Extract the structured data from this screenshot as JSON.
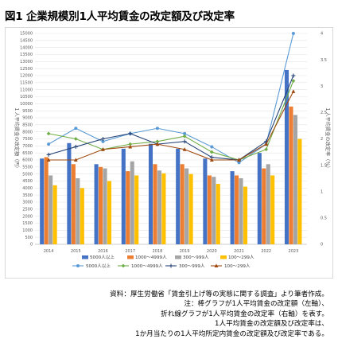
{
  "figure_title": "図1 企業規模別1人平均賃金の改定額及び改定率",
  "chart_data": {
    "type": "bar+line",
    "categories": [
      "2014",
      "2015",
      "2016",
      "2017",
      "2018",
      "2019",
      "2020",
      "2021",
      "2022",
      "2023"
    ],
    "ylabel_left": "１人平均賃金の改定額（円）",
    "ylabel_right": "１人平均賃金の改定率（％）",
    "ylim_left": [
      0,
      15000
    ],
    "ylim_right": [
      0,
      4
    ],
    "left_ticks": [
      "0",
      "500",
      "1000",
      "1500",
      "2000",
      "2500",
      "3000",
      "3500",
      "4000",
      "4500",
      "5000",
      "5500",
      "6000",
      "6500",
      "7000",
      "7500",
      "8000",
      "8500",
      "9000",
      "9500",
      "10000",
      "10500",
      "11000",
      "11500",
      "12000",
      "12500",
      "13000",
      "13500",
      "14000",
      "14500",
      "15000"
    ],
    "right_ticks": [
      "0",
      "0.5",
      "1",
      "1.5",
      "2",
      "2.5",
      "3",
      "3.5",
      "4"
    ],
    "bar_series": [
      {
        "name": "5000人以上",
        "color": "#4472c4",
        "values": [
          6100,
          7200,
          5700,
          6800,
          7150,
          6800,
          6100,
          5200,
          6500,
          12400
        ]
      },
      {
        "name": "1000～4999人",
        "color": "#ed7d31",
        "values": [
          6200,
          5700,
          5500,
          5200,
          5700,
          5700,
          4900,
          4900,
          5400,
          9800
        ]
      },
      {
        "name": "300～999人",
        "color": "#a5a5a5",
        "values": [
          4900,
          4700,
          5400,
          5900,
          5250,
          5400,
          4800,
          4700,
          5700,
          9200
        ]
      },
      {
        "name": "100～299人",
        "color": "#ffc000",
        "values": [
          4200,
          4000,
          4500,
          4900,
          5050,
          5000,
          4300,
          4100,
          4900,
          7500
        ]
      }
    ],
    "line_series": [
      {
        "name": "5000人以上",
        "color": "#5b9bd5",
        "marker": "circle",
        "values": [
          1.9,
          2.2,
          1.95,
          2.1,
          2.2,
          2.1,
          1.85,
          1.55,
          1.9,
          4.0
        ]
      },
      {
        "name": "1000～4999人",
        "color": "#70ad47",
        "marker": "diamond",
        "values": [
          2.1,
          2.0,
          1.8,
          1.9,
          1.95,
          2.05,
          1.75,
          1.6,
          1.8,
          3.1
        ]
      },
      {
        "name": "300～999人",
        "color": "#264478",
        "marker": "plus",
        "values": [
          1.7,
          1.85,
          2.0,
          2.1,
          1.9,
          1.95,
          1.65,
          1.6,
          1.95,
          3.2
        ]
      },
      {
        "name": "100～299人",
        "color": "#9e480e",
        "marker": "triangle",
        "values": [
          1.6,
          1.6,
          1.8,
          1.85,
          1.9,
          1.8,
          1.6,
          1.6,
          1.9,
          2.9
        ]
      }
    ],
    "legend_position": "bottom",
    "grid": true
  },
  "notes": [
    "資料：厚生労働省「賃金引上げ等の実態に関する調査」より筆者作成。",
    "注：棒グラフが1人平均賃金の改定額（左軸）、",
    "折れ線グラフが1人平均賃金の改定率（右軸）を表す。",
    "1人平均賃金の改定額及び改定率は、",
    "1か月当たりの1人平均所定内賃金の改定額及び改定率である。"
  ]
}
